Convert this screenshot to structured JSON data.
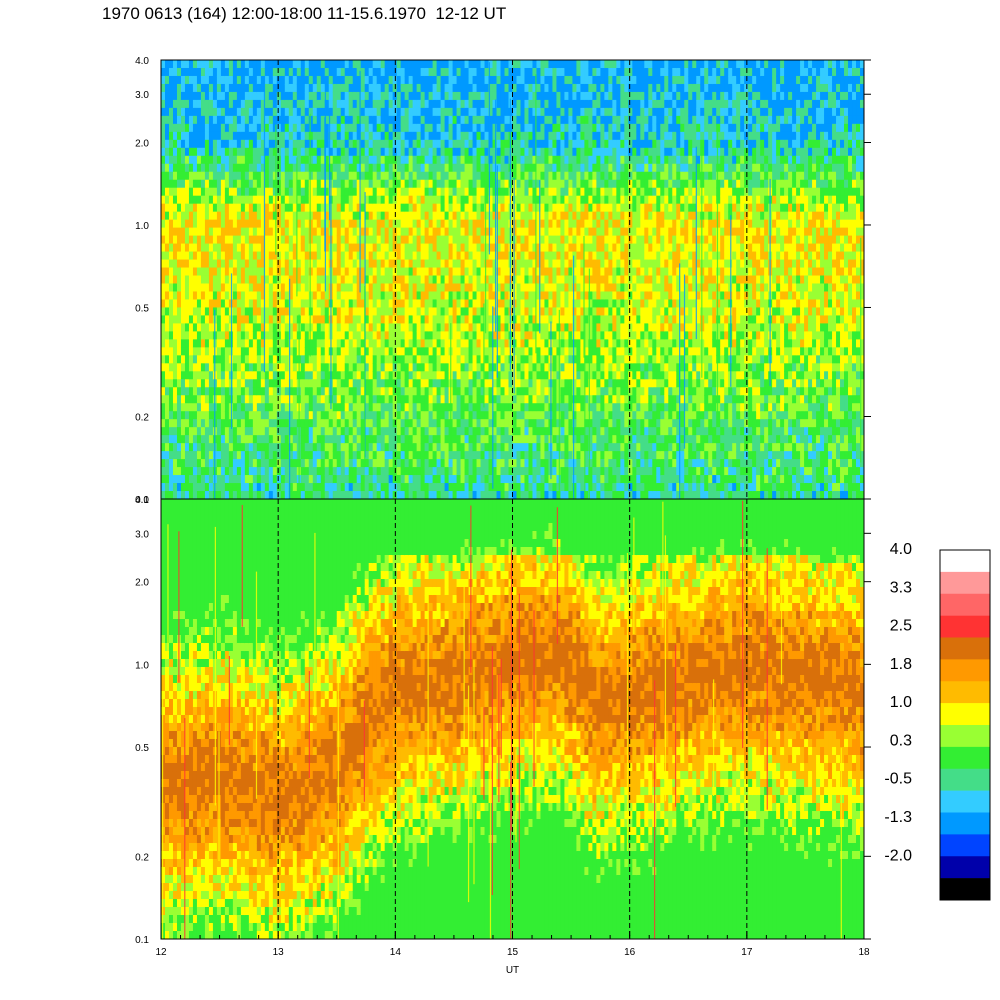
{
  "title": "1970 0613 (164) 12:00-18:00 11-15.6.1970  12-12 UT",
  "chart_data": [
    {
      "type": "heatmap",
      "panel": "top",
      "x_ticks": [
        "12",
        "13",
        "14",
        "15",
        "16",
        "17",
        "18"
      ],
      "y_ticks": [
        "0.1",
        "0.2",
        "0.5",
        "1.0",
        "2.0",
        "3.0",
        "4.0"
      ],
      "x_range": [
        12,
        18
      ],
      "y_range": [
        0.1,
        4.0
      ],
      "y_scale": "log",
      "dashed_hour_lines": [
        13,
        14,
        15,
        16,
        17
      ],
      "dominant_levels_by_frequency": [
        {
          "y": 0.1,
          "level": 0.3
        },
        {
          "y": 0.2,
          "level": 0.5
        },
        {
          "y": 0.5,
          "level": 0.8
        },
        {
          "y": 1.0,
          "level": 0.9
        },
        {
          "y": 2.0,
          "level": 0.2
        },
        {
          "y": 4.0,
          "level": 0.0
        }
      ]
    },
    {
      "type": "heatmap",
      "panel": "bottom",
      "x_ticks": [
        "12",
        "13",
        "14",
        "15",
        "16",
        "17",
        "18"
      ],
      "y_ticks": [
        "0.1",
        "0.2",
        "0.5",
        "1.0",
        "2.0",
        "3.0",
        "4.0"
      ],
      "x_range": [
        12,
        18
      ],
      "y_range": [
        0.1,
        4.0
      ],
      "y_scale": "log",
      "xlabel": "UT",
      "dashed_hour_lines": [
        13,
        14,
        15,
        16,
        17
      ],
      "peak_band": [
        {
          "x": 12.0,
          "y": 0.35
        },
        {
          "x": 12.5,
          "y": 0.4
        },
        {
          "x": 13.0,
          "y": 0.32
        },
        {
          "x": 13.5,
          "y": 0.4
        },
        {
          "x": 14.0,
          "y": 0.8
        },
        {
          "x": 14.5,
          "y": 0.9
        },
        {
          "x": 15.0,
          "y": 1.05
        },
        {
          "x": 15.4,
          "y": 1.1
        },
        {
          "x": 15.7,
          "y": 0.72
        },
        {
          "x": 16.3,
          "y": 0.82
        },
        {
          "x": 17.0,
          "y": 1.0
        },
        {
          "x": 17.5,
          "y": 0.9
        },
        {
          "x": 18.0,
          "y": 0.8
        }
      ]
    }
  ],
  "colorbar": {
    "labels": [
      "4.0",
      "3.3",
      "2.5",
      "1.8",
      "1.0",
      "0.3",
      "-0.5",
      "-1.3",
      "-2.0"
    ],
    "colors": [
      "#ffffff",
      "#ff9999",
      "#ff6666",
      "#ff3333",
      "#d9700a",
      "#ff9900",
      "#ffbb00",
      "#ffff00",
      "#99ff33",
      "#33ee33",
      "#44dd88",
      "#33ccff",
      "#0099ff",
      "#0044ff",
      "#0000aa",
      "#000000"
    ]
  }
}
